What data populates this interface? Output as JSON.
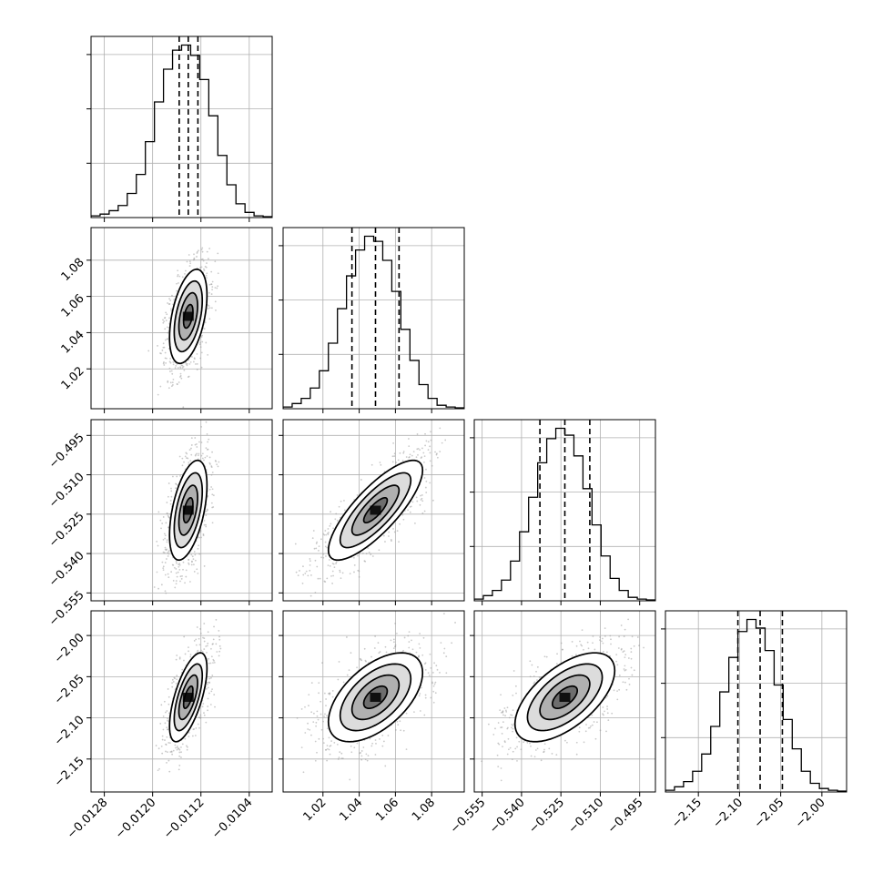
{
  "chart_data": {
    "type": "corner",
    "n_params": 4,
    "grid": true,
    "params": [
      {
        "ticks": [
          -0.0128,
          -0.012,
          -0.0112,
          -0.0104
        ],
        "tick_labels": [
          "−0.0128",
          "−0.0120",
          "−0.0112",
          "−0.0104"
        ],
        "range": [
          -0.01302,
          -0.01002
        ],
        "quantiles": [
          -0.01156,
          -0.01141,
          -0.01125
        ],
        "hist": [
          0.01,
          0.02,
          0.04,
          0.07,
          0.14,
          0.25,
          0.44,
          0.67,
          0.86,
          0.97,
          1.0,
          0.94,
          0.8,
          0.59,
          0.36,
          0.19,
          0.08,
          0.03,
          0.01,
          0.005
        ]
      },
      {
        "ticks": [
          1.02,
          1.04,
          1.06,
          1.08
        ],
        "tick_labels": [
          "1.02",
          "1.04",
          "1.06",
          "1.08"
        ],
        "range": [
          0.998,
          1.098
        ],
        "quantiles": [
          1.036,
          1.049,
          1.062
        ],
        "hist": [
          0.01,
          0.03,
          0.06,
          0.12,
          0.22,
          0.38,
          0.58,
          0.77,
          0.92,
          1.0,
          0.97,
          0.86,
          0.68,
          0.46,
          0.28,
          0.14,
          0.06,
          0.02,
          0.01,
          0.005
        ]
      },
      {
        "ticks": [
          -0.555,
          -0.54,
          -0.525,
          -0.51,
          -0.495
        ],
        "tick_labels": [
          "−0.555",
          "−0.540",
          "−0.525",
          "−0.510",
          "−0.495"
        ],
        "range": [
          -0.558,
          -0.489
        ],
        "quantiles": [
          -0.533,
          -0.5235,
          -0.514
        ],
        "hist": [
          0.01,
          0.03,
          0.06,
          0.12,
          0.23,
          0.4,
          0.6,
          0.8,
          0.94,
          1.0,
          0.96,
          0.84,
          0.65,
          0.44,
          0.26,
          0.13,
          0.06,
          0.02,
          0.01,
          0.005
        ]
      },
      {
        "ticks": [
          -2.15,
          -2.1,
          -2.05,
          -2.0
        ],
        "tick_labels": [
          "−2.15",
          "−2.10",
          "−2.05",
          "−2.00"
        ],
        "range": [
          -2.19,
          -1.97
        ],
        "quantiles": [
          -2.102,
          -2.075,
          -2.048
        ],
        "hist": [
          0.01,
          0.03,
          0.06,
          0.12,
          0.22,
          0.38,
          0.58,
          0.78,
          0.93,
          1.0,
          0.95,
          0.82,
          0.62,
          0.42,
          0.25,
          0.12,
          0.05,
          0.02,
          0.01,
          0.005
        ]
      }
    ],
    "correlations": {
      "1-0": 0.45,
      "2-0": 0.5,
      "2-1": 0.8,
      "3-0": 0.65,
      "3-1": 0.55,
      "3-2": 0.6
    },
    "contour_levels_sigma": [
      0.5,
      1.0,
      1.5,
      2.0
    ],
    "sample_color": "#9a9a9a",
    "density_color": "#000000"
  }
}
